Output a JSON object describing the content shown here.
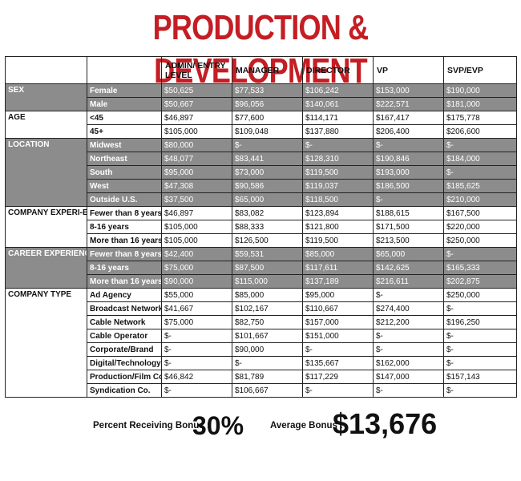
{
  "title": "PRODUCTION & DEVELOPMENT",
  "columns": [
    "",
    "",
    "ADMIN/ ENTRY LEVEL",
    "MANAGER",
    "DIRECTOR",
    "VP",
    "SVP/EVP"
  ],
  "groups": [
    {
      "category": "SEX",
      "shaded": true,
      "rows": [
        {
          "label": "Female",
          "values": [
            "$50,625",
            "$77,533",
            "$106,242",
            "$153,000",
            "$190,000"
          ]
        },
        {
          "label": "Male",
          "values": [
            "$50,667",
            "$96,056",
            "$140,061",
            "$222,571",
            "$181,000"
          ]
        }
      ]
    },
    {
      "category": "AGE",
      "shaded": false,
      "rows": [
        {
          "label": "<45",
          "values": [
            "$46,897",
            "$77,600",
            "$114,171",
            "$167,417",
            "$175,778"
          ]
        },
        {
          "label": "45+",
          "values": [
            "$105,000",
            "$109,048",
            "$137,880",
            "$206,400",
            "$206,600"
          ]
        }
      ]
    },
    {
      "category": "LOCATION",
      "shaded": true,
      "rows": [
        {
          "label": "Midwest",
          "values": [
            "$80,000",
            "$-",
            "$-",
            "$-",
            "$-"
          ]
        },
        {
          "label": "Northeast",
          "values": [
            "$48,077",
            "$83,441",
            "$128,310",
            "$190,846",
            "$184,000"
          ]
        },
        {
          "label": "South",
          "values": [
            "$95,000",
            "$73,000",
            "$119,500",
            "$193,000",
            "$-"
          ]
        },
        {
          "label": "West",
          "values": [
            "$47,308",
            "$90,586",
            "$119,037",
            "$186,500",
            "$185,625"
          ]
        },
        {
          "label": "Outside U.S.",
          "values": [
            "$37,500",
            "$65,000",
            "$118,500",
            "$-",
            "$210,000"
          ]
        }
      ]
    },
    {
      "category": "COMPANY EXPERI-ENCE",
      "shaded": false,
      "rows": [
        {
          "label": "Fewer than 8 years",
          "values": [
            "$46,897",
            "$83,082",
            "$123,894",
            "$188,615",
            "$167,500"
          ]
        },
        {
          "label": "8-16 years",
          "values": [
            "$105,000",
            "$88,333",
            "$121,800",
            "$171,500",
            "$220,000"
          ]
        },
        {
          "label": "More than 16 years",
          "values": [
            "$105,000",
            "$126,500",
            "$119,500",
            "$213,500",
            "$250,000"
          ]
        }
      ]
    },
    {
      "category": "CAREER EXPERIENCE",
      "shaded": true,
      "rows": [
        {
          "label": "Fewer than 8 years",
          "values": [
            "$42,400",
            "$59,531",
            "$85,000",
            "$65,000",
            "$-"
          ]
        },
        {
          "label": "8-16 years",
          "values": [
            "$75,000",
            "$87,500",
            "$117,611",
            "$142,625",
            "$165,333"
          ]
        },
        {
          "label": "More than 16 years",
          "values": [
            "$90,000",
            "$115,000",
            "$137,189",
            "$216,611",
            "$202,875"
          ]
        }
      ]
    },
    {
      "category": "COMPANY TYPE",
      "shaded": false,
      "rows": [
        {
          "label": "Ad Agency",
          "values": [
            "$55,000",
            "$85,000",
            "$95,000",
            "$-",
            "$250,000"
          ]
        },
        {
          "label": "Broadcast Network",
          "values": [
            "$41,667",
            "$102,167",
            "$110,667",
            "$274,400",
            "$-"
          ]
        },
        {
          "label": "Cable Network",
          "values": [
            "$75,000",
            "$82,750",
            "$157,000",
            "$212,200",
            "$196,250"
          ]
        },
        {
          "label": "Cable Operator",
          "values": [
            "$-",
            "$101,667",
            "$151,000",
            "$-",
            "$-"
          ]
        },
        {
          "label": "Corporate/Brand",
          "values": [
            "$-",
            "$90,000",
            "$-",
            "$-",
            "$-"
          ]
        },
        {
          "label": "Digital/Technology",
          "values": [
            "$-",
            "$-",
            "$135,667",
            "$162,000",
            "$-"
          ]
        },
        {
          "label": "Production/Film Co.",
          "values": [
            "$46,842",
            "$81,789",
            "$117,229",
            "$147,000",
            "$157,143"
          ]
        },
        {
          "label": "Syndication Co.",
          "values": [
            "$-",
            "$106,667",
            "$-",
            "$-",
            "$-"
          ]
        }
      ]
    }
  ],
  "footer": {
    "bonus_percent_label": "Percent Receiving Bonus :",
    "bonus_percent_value": "30%",
    "avg_bonus_label": "Average Bonus :",
    "avg_bonus_value": "$13,676"
  },
  "colors": {
    "title": "#c41e24",
    "shaded_row": "#8c8c8c"
  }
}
